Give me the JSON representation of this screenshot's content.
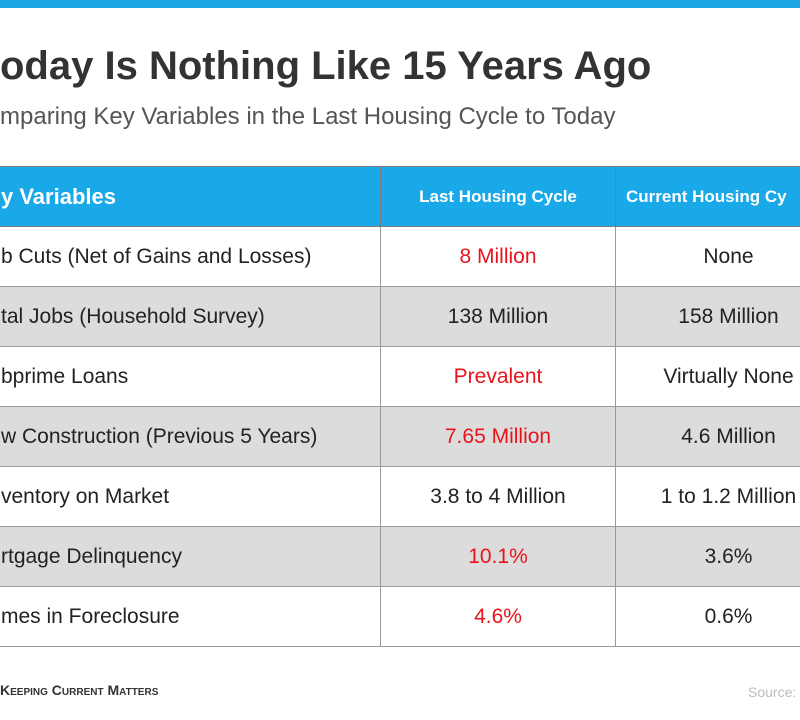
{
  "header": {
    "title": "oday Is Nothing Like 15 Years Ago",
    "subtitle": "mparing Key Variables in the Last Housing Cycle to Today"
  },
  "table": {
    "columns": [
      "y Variables",
      "Last Housing Cycle",
      "Current Housing Cy"
    ],
    "rows": [
      [
        "b Cuts (Net of Gains and Losses)",
        "8 Million",
        "None"
      ],
      [
        "tal Jobs (Household Survey)",
        "138 Million",
        "158 Million"
      ],
      [
        "bprime Loans",
        "Prevalent",
        "Virtually None"
      ],
      [
        "w Construction (Previous 5 Years)",
        "7.65 Million",
        "4.6 Million"
      ],
      [
        "ventory on Market",
        "3.8 to 4 Million",
        "1 to 1.2 Million"
      ],
      [
        "rtgage Delinquency",
        "10.1%",
        "3.6%"
      ],
      [
        "mes in Foreclosure",
        "4.6%",
        "0.6%"
      ]
    ],
    "highlighted_rows": [
      0,
      2,
      3,
      5,
      6
    ],
    "highlight_color": "#e8141c"
  },
  "footer": {
    "brand": "Keeping Current Matters",
    "source": "Source:"
  }
}
